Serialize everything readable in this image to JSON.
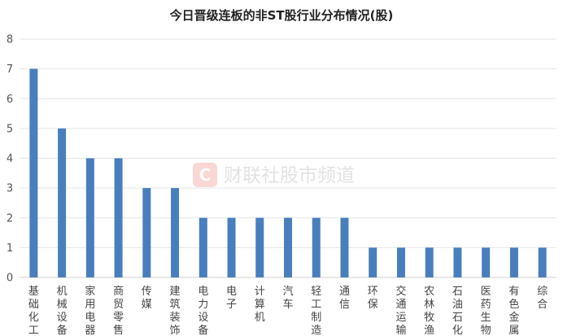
{
  "chart_data": {
    "type": "bar",
    "title": "今日晋级连板的非ST股行业分布情况(股)",
    "xlabel": "",
    "ylabel": "",
    "ylim": [
      0,
      8
    ],
    "yticks": [
      0,
      1,
      2,
      3,
      4,
      5,
      6,
      7,
      8
    ],
    "grid": true,
    "legend": "none",
    "bar_color": "#4a7ebb",
    "categories": [
      "基础化工",
      "机械设备",
      "家用电器",
      "商贸零售",
      "传媒",
      "建筑装饰",
      "电力设备",
      "电子",
      "计算机",
      "汽车",
      "轻工制造",
      "通信",
      "环保",
      "交通运输",
      "农林牧渔",
      "石油石化",
      "医药生物",
      "有色金属",
      "综合"
    ],
    "values": [
      7,
      5,
      4,
      4,
      3,
      3,
      2,
      2,
      2,
      2,
      2,
      2,
      1,
      1,
      1,
      1,
      1,
      1,
      1
    ]
  },
  "watermark": {
    "logo_letter": "C",
    "text": "财联社股市频道",
    "color": "#e24a3b"
  }
}
